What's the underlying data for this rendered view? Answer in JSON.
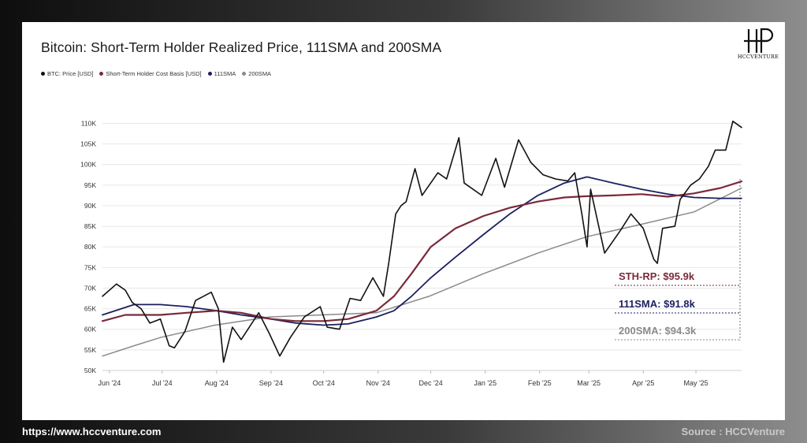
{
  "chart_data": {
    "type": "line",
    "title": "Bitcoin: Short-Term Holder Realized Price, 111SMA and 200SMA",
    "legend_placement": "top-left",
    "xlabel": "",
    "ylabel": "",
    "grid": true,
    "ylim": [
      50000,
      112000
    ],
    "y_ticks": [
      50000,
      55000,
      60000,
      65000,
      70000,
      75000,
      80000,
      85000,
      90000,
      95000,
      100000,
      105000,
      110000
    ],
    "y_tick_labels": [
      "50K",
      "55K",
      "60K",
      "65K",
      "70K",
      "75K",
      "80K",
      "85K",
      "90K",
      "95K",
      "100K",
      "105K",
      "110K"
    ],
    "x_ticks": [
      "2024-06-01",
      "2024-07-01",
      "2024-08-01",
      "2024-09-01",
      "2024-10-01",
      "2024-11-01",
      "2024-12-01",
      "2025-01-01",
      "2025-02-01",
      "2025-03-01",
      "2025-04-01",
      "2025-05-01"
    ],
    "x_tick_labels": [
      "Jun '24",
      "Jul '24",
      "Aug '24",
      "Sep '24",
      "Oct '24",
      "Nov '24",
      "Dec '24",
      "Jan '25",
      "Feb '25",
      "Mar '25",
      "Apr '25",
      "May '25"
    ],
    "xlim": [
      "2024-05-28",
      "2025-05-27"
    ],
    "series": [
      {
        "name": "BTC: Price [USD]",
        "color": "#111111",
        "points": [
          [
            "2024-05-28",
            68000
          ],
          [
            "2024-06-05",
            71000
          ],
          [
            "2024-06-10",
            69500
          ],
          [
            "2024-06-14",
            66500
          ],
          [
            "2024-06-19",
            65000
          ],
          [
            "2024-06-24",
            61500
          ],
          [
            "2024-06-30",
            62500
          ],
          [
            "2024-07-05",
            56000
          ],
          [
            "2024-07-08",
            55500
          ],
          [
            "2024-07-14",
            59500
          ],
          [
            "2024-07-20",
            67000
          ],
          [
            "2024-07-29",
            69000
          ],
          [
            "2024-08-02",
            65000
          ],
          [
            "2024-08-05",
            52000
          ],
          [
            "2024-08-10",
            60500
          ],
          [
            "2024-08-15",
            57500
          ],
          [
            "2024-08-25",
            64000
          ],
          [
            "2024-08-31",
            59000
          ],
          [
            "2024-09-06",
            53500
          ],
          [
            "2024-09-12",
            58000
          ],
          [
            "2024-09-20",
            63000
          ],
          [
            "2024-09-29",
            65500
          ],
          [
            "2024-10-03",
            60500
          ],
          [
            "2024-10-10",
            60000
          ],
          [
            "2024-10-16",
            67500
          ],
          [
            "2024-10-22",
            67000
          ],
          [
            "2024-10-29",
            72500
          ],
          [
            "2024-11-04",
            68000
          ],
          [
            "2024-11-07",
            76000
          ],
          [
            "2024-11-11",
            88000
          ],
          [
            "2024-11-14",
            90000
          ],
          [
            "2024-11-17",
            91000
          ],
          [
            "2024-11-22",
            99000
          ],
          [
            "2024-11-26",
            92500
          ],
          [
            "2024-12-05",
            98000
          ],
          [
            "2024-12-10",
            96500
          ],
          [
            "2024-12-17",
            106500
          ],
          [
            "2024-12-20",
            95500
          ],
          [
            "2024-12-30",
            92500
          ],
          [
            "2025-01-07",
            101500
          ],
          [
            "2025-01-12",
            94500
          ],
          [
            "2025-01-20",
            106000
          ],
          [
            "2025-01-27",
            100500
          ],
          [
            "2025-02-03",
            97500
          ],
          [
            "2025-02-10",
            96500
          ],
          [
            "2025-02-17",
            96000
          ],
          [
            "2025-02-21",
            98000
          ],
          [
            "2025-02-25",
            88000
          ],
          [
            "2025-02-28",
            80000
          ],
          [
            "2025-03-02",
            94000
          ],
          [
            "2025-03-10",
            78500
          ],
          [
            "2025-03-19",
            84000
          ],
          [
            "2025-03-25",
            88000
          ],
          [
            "2025-04-01",
            84500
          ],
          [
            "2025-04-07",
            77000
          ],
          [
            "2025-04-09",
            76000
          ],
          [
            "2025-04-12",
            84500
          ],
          [
            "2025-04-19",
            85000
          ],
          [
            "2025-04-22",
            91500
          ],
          [
            "2025-04-28",
            95000
          ],
          [
            "2025-05-03",
            96500
          ],
          [
            "2025-05-08",
            99500
          ],
          [
            "2025-05-12",
            103500
          ],
          [
            "2025-05-18",
            103500
          ],
          [
            "2025-05-22",
            110500
          ],
          [
            "2025-05-27",
            109000
          ]
        ]
      },
      {
        "name": "Short-Term Holder Cost Basis [USD]",
        "color": "#7a2a3a",
        "points": [
          [
            "2024-05-28",
            62000
          ],
          [
            "2024-06-10",
            63500
          ],
          [
            "2024-06-30",
            63500
          ],
          [
            "2024-07-15",
            64000
          ],
          [
            "2024-08-01",
            64500
          ],
          [
            "2024-08-15",
            64000
          ],
          [
            "2024-09-01",
            62500
          ],
          [
            "2024-09-15",
            62000
          ],
          [
            "2024-10-01",
            62000
          ],
          [
            "2024-10-15",
            62500
          ],
          [
            "2024-10-31",
            64500
          ],
          [
            "2024-11-10",
            68000
          ],
          [
            "2024-11-20",
            73500
          ],
          [
            "2024-12-01",
            80000
          ],
          [
            "2024-12-15",
            84500
          ],
          [
            "2024-12-31",
            87500
          ],
          [
            "2025-01-15",
            89500
          ],
          [
            "2025-01-31",
            91000
          ],
          [
            "2025-02-15",
            92000
          ],
          [
            "2025-02-28",
            92300
          ],
          [
            "2025-03-15",
            92500
          ],
          [
            "2025-03-31",
            92800
          ],
          [
            "2025-04-15",
            92200
          ],
          [
            "2025-04-30",
            93000
          ],
          [
            "2025-05-15",
            94300
          ],
          [
            "2025-05-27",
            95900
          ]
        ]
      },
      {
        "name": "111SMA",
        "color": "#1b1f5e",
        "points": [
          [
            "2024-05-28",
            63500
          ],
          [
            "2024-06-15",
            66000
          ],
          [
            "2024-06-30",
            66000
          ],
          [
            "2024-07-15",
            65500
          ],
          [
            "2024-08-01",
            64500
          ],
          [
            "2024-08-15",
            63500
          ],
          [
            "2024-09-01",
            62500
          ],
          [
            "2024-09-15",
            61500
          ],
          [
            "2024-10-01",
            61000
          ],
          [
            "2024-10-15",
            61300
          ],
          [
            "2024-10-31",
            63000
          ],
          [
            "2024-11-10",
            64500
          ],
          [
            "2024-11-20",
            68000
          ],
          [
            "2024-12-01",
            72500
          ],
          [
            "2024-12-15",
            77500
          ],
          [
            "2024-12-31",
            83000
          ],
          [
            "2025-01-15",
            88000
          ],
          [
            "2025-01-31",
            92500
          ],
          [
            "2025-02-15",
            95500
          ],
          [
            "2025-02-28",
            97000
          ],
          [
            "2025-03-15",
            95500
          ],
          [
            "2025-03-31",
            94000
          ],
          [
            "2025-04-15",
            92800
          ],
          [
            "2025-04-30",
            92000
          ],
          [
            "2025-05-15",
            91800
          ],
          [
            "2025-05-27",
            91800
          ]
        ]
      },
      {
        "name": "200SMA",
        "color": "#8a8a8a",
        "points": [
          [
            "2024-05-28",
            53500
          ],
          [
            "2024-06-15",
            56000
          ],
          [
            "2024-06-30",
            58000
          ],
          [
            "2024-07-31",
            61000
          ],
          [
            "2024-08-31",
            63000
          ],
          [
            "2024-09-30",
            63500
          ],
          [
            "2024-10-31",
            64000
          ],
          [
            "2024-11-30",
            68000
          ],
          [
            "2024-12-31",
            73500
          ],
          [
            "2025-01-31",
            78500
          ],
          [
            "2025-02-28",
            82500
          ],
          [
            "2025-03-31",
            85500
          ],
          [
            "2025-04-30",
            88500
          ],
          [
            "2025-05-27",
            94300
          ]
        ]
      }
    ],
    "annotations": [
      {
        "text": "STH-RP: $95.9k",
        "color": "#7a2a3a",
        "value": 95900
      },
      {
        "text": "111SMA: $91.8k",
        "color": "#1b1f5e",
        "value": 91800
      },
      {
        "text": "200SMA: $94.3k",
        "color": "#8a8a8a",
        "value": 94300
      }
    ]
  },
  "footer": {
    "url": "https://www.hccventure.com",
    "source": "Source : HCCVenture"
  },
  "logo": {
    "text": "HCCVENTURE",
    "icon": "hp-monogram-icon"
  }
}
